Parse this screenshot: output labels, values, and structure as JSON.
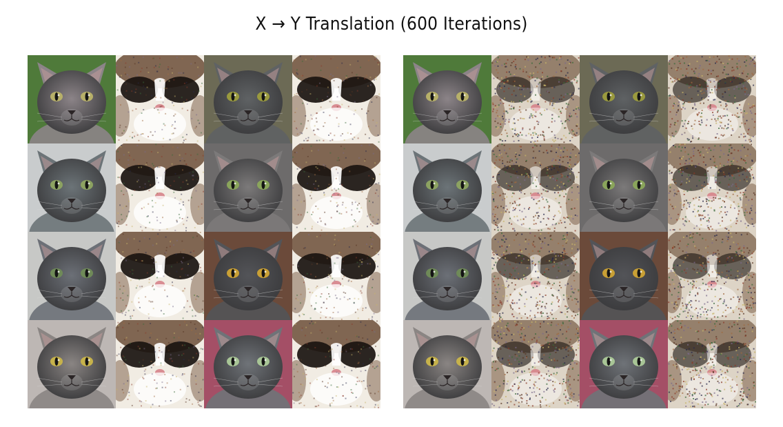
{
  "title": "X → Y Translation (600 Iterations)",
  "figures": [
    {
      "name": "left-grid",
      "rows": [
        [
          {
            "kind": "real",
            "fur": "#8c8488",
            "bg": "#4f7a3a",
            "eye": "#b7b069"
          },
          {
            "kind": "fake",
            "quality": "sharp"
          },
          {
            "kind": "real",
            "fur": "#5f6264",
            "bg": "#6c6a55",
            "eye": "#9a9a3e"
          },
          {
            "kind": "fake",
            "quality": "sharp"
          }
        ],
        [
          {
            "kind": "real",
            "fur": "#6c7478",
            "bg": "#c9cccd",
            "eye": "#8ca261"
          },
          {
            "kind": "fake",
            "quality": "sharp"
          },
          {
            "kind": "real",
            "fur": "#7c7a7a",
            "bg": "#6d6b6b",
            "eye": "#8aa55b"
          },
          {
            "kind": "fake",
            "quality": "sharp"
          }
        ],
        [
          {
            "kind": "real",
            "fur": "#6c7077",
            "bg": "#c7c8c6",
            "eye": "#6f8a58"
          },
          {
            "kind": "fake",
            "quality": "sharp"
          },
          {
            "kind": "real",
            "fur": "#535458",
            "bg": "#6b4a3a",
            "eye": "#c9a035"
          },
          {
            "kind": "fake",
            "quality": "sharp"
          }
        ],
        [
          {
            "kind": "real",
            "fur": "#8a8583",
            "bg": "#bdb7b4",
            "eye": "#c6b24b"
          },
          {
            "kind": "fake",
            "quality": "sharp"
          },
          {
            "kind": "real",
            "fur": "#6f7378",
            "bg": "#a44f66",
            "eye": "#a8c596"
          },
          {
            "kind": "fake",
            "quality": "sharp"
          }
        ]
      ]
    },
    {
      "name": "right-grid",
      "rows": [
        [
          {
            "kind": "real",
            "fur": "#8c8488",
            "bg": "#4f7a3a",
            "eye": "#b7b069"
          },
          {
            "kind": "fake",
            "quality": "noisy"
          },
          {
            "kind": "real",
            "fur": "#5f6264",
            "bg": "#6c6a55",
            "eye": "#9a9a3e"
          },
          {
            "kind": "fake",
            "quality": "noisy"
          }
        ],
        [
          {
            "kind": "real",
            "fur": "#6c7478",
            "bg": "#c9cccd",
            "eye": "#8ca261"
          },
          {
            "kind": "fake",
            "quality": "noisy"
          },
          {
            "kind": "real",
            "fur": "#7c7a7a",
            "bg": "#6d6b6b",
            "eye": "#8aa55b"
          },
          {
            "kind": "fake",
            "quality": "noisy"
          }
        ],
        [
          {
            "kind": "real",
            "fur": "#6c7077",
            "bg": "#c7c8c6",
            "eye": "#6f8a58"
          },
          {
            "kind": "fake",
            "quality": "noisy"
          },
          {
            "kind": "real",
            "fur": "#535458",
            "bg": "#6b4a3a",
            "eye": "#c9a035"
          },
          {
            "kind": "fake",
            "quality": "noisy"
          }
        ],
        [
          {
            "kind": "real",
            "fur": "#8a8583",
            "bg": "#bdb7b4",
            "eye": "#c6b24b"
          },
          {
            "kind": "fake",
            "quality": "noisy"
          },
          {
            "kind": "real",
            "fur": "#6f7378",
            "bg": "#a44f66",
            "eye": "#a8c596"
          },
          {
            "kind": "fake",
            "quality": "noisy"
          }
        ]
      ]
    }
  ]
}
